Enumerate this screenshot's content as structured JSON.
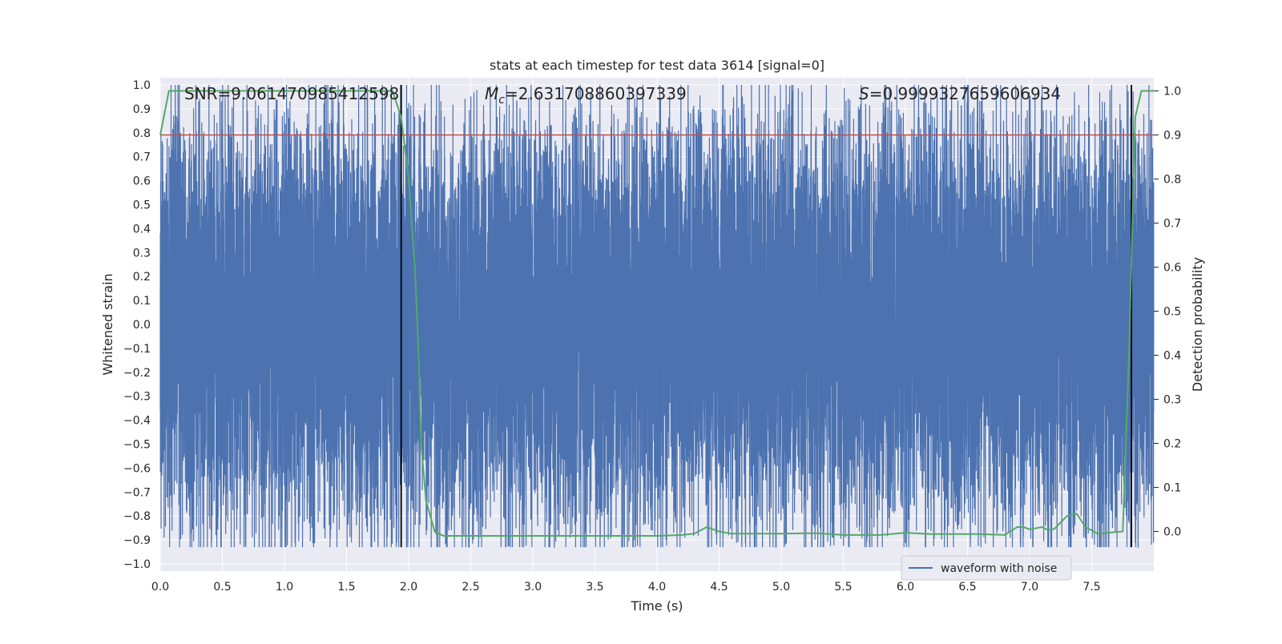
{
  "chart_data": {
    "type": "line",
    "title": "stats at each timestep for test data 3614 [signal=0]",
    "xlabel": "Time (s)",
    "ylabel_left": "Whitened strain",
    "ylabel_right": "Detection probability",
    "xlim": [
      0.0,
      8.0
    ],
    "ylim_left": [
      -1.03,
      1.03
    ],
    "ylim_right": [
      -0.09,
      1.03
    ],
    "x_ticks": [
      "0.0",
      "0.5",
      "1.0",
      "1.5",
      "2.0",
      "2.5",
      "3.0",
      "3.5",
      "4.0",
      "4.5",
      "5.0",
      "5.5",
      "6.0",
      "6.5",
      "7.0",
      "7.5"
    ],
    "y_ticks_left": [
      "1.0",
      "0.9",
      "0.8",
      "0.7",
      "0.6",
      "0.5",
      "0.4",
      "0.3",
      "0.2",
      "0.1",
      "0.0",
      "−0.1",
      "−0.2",
      "−0.3",
      "−0.4",
      "−0.5",
      "−0.6",
      "−0.7",
      "−0.8",
      "−0.9",
      "−1.0"
    ],
    "y_ticks_right": [
      "1.0",
      "0.9",
      "0.8",
      "0.7",
      "0.6",
      "0.5",
      "0.4",
      "0.3",
      "0.2",
      "0.1",
      "0.0"
    ],
    "grid": true,
    "legend": {
      "location": "lower-right",
      "entries": [
        "waveform with noise"
      ]
    },
    "annotations": {
      "snr": "SNR=9.061470985412598",
      "mc_symbol": "M",
      "mc_sub": "c",
      "mc_value": "=2.631708860397339",
      "s_symbol": "S",
      "s_value": "=0.9999327659606934"
    },
    "threshold_line": {
      "axis": "right",
      "value": 0.9,
      "color": "#c44e52"
    },
    "vertical_lines": [
      {
        "x": 1.94,
        "ymin": -0.93,
        "ymax": 1.0
      },
      {
        "x": 7.82,
        "ymin": -0.93,
        "ymax": 1.0
      }
    ],
    "series": [
      {
        "name": "waveform with noise",
        "axis": "left",
        "color": "#4c72b0",
        "generated_noise": {
          "sample_rate": 2048,
          "duration": 8.0,
          "core_amplitude": 0.42,
          "min": -0.93,
          "max": 1.0
        }
      },
      {
        "axis": "right",
        "color": "#55a868",
        "x": [
          0.0,
          0.07,
          0.15,
          0.5,
          1.0,
          1.5,
          1.87,
          1.94,
          2.0,
          2.05,
          2.08,
          2.1,
          2.14,
          2.21,
          2.28,
          2.4,
          2.6,
          3.0,
          3.5,
          4.0,
          4.2,
          4.3,
          4.4,
          4.5,
          4.6,
          5.0,
          5.2,
          5.3,
          5.5,
          5.8,
          6.0,
          6.2,
          6.4,
          6.6,
          6.8,
          6.9,
          6.95,
          7.0,
          7.1,
          7.15,
          7.2,
          7.3,
          7.38,
          7.45,
          7.55,
          7.75,
          7.8,
          7.85,
          7.9,
          8.0
        ],
        "y": [
          0.9,
          1.0,
          1.0,
          1.0,
          1.0,
          1.0,
          1.0,
          0.94,
          0.8,
          0.6,
          0.4,
          0.2,
          0.07,
          0.0,
          -0.01,
          -0.01,
          -0.01,
          -0.01,
          -0.01,
          -0.01,
          -0.008,
          -0.005,
          0.01,
          0.0,
          -0.005,
          -0.005,
          -0.004,
          -0.004,
          -0.008,
          -0.008,
          -0.003,
          -0.006,
          -0.006,
          -0.006,
          -0.008,
          0.01,
          0.01,
          0.005,
          0.01,
          0.003,
          0.006,
          0.035,
          0.04,
          0.01,
          -0.005,
          0.0,
          0.4,
          0.94,
          1.0,
          1.0
        ]
      }
    ]
  }
}
